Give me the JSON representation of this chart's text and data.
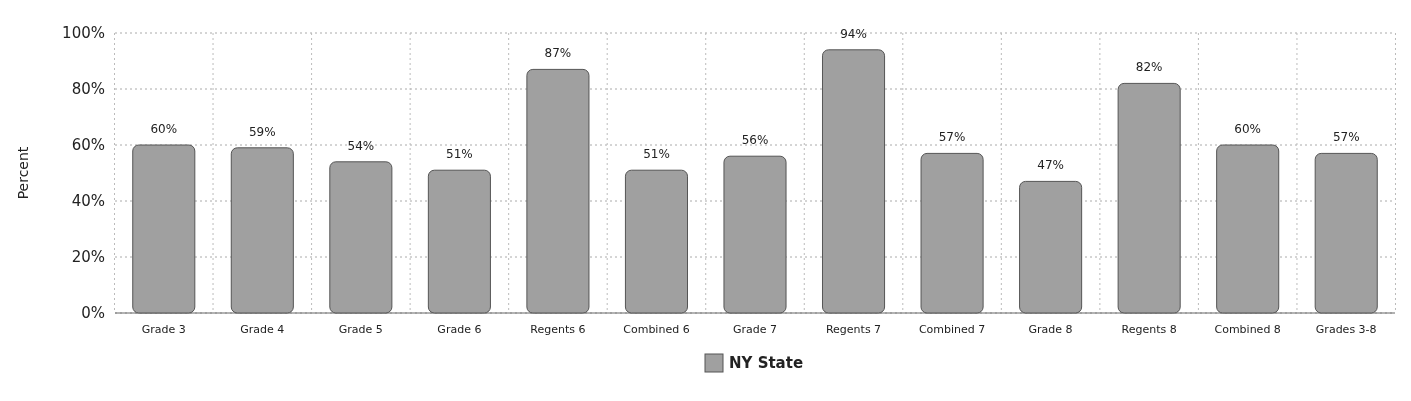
{
  "chart_data": {
    "type": "bar",
    "ylabel": "Percent",
    "categories": [
      "Grade 3",
      "Grade 4",
      "Grade 5",
      "Grade 6",
      "Regents 6",
      "Combined 6",
      "Grade 7",
      "Regents 7",
      "Combined 7",
      "Grade 8",
      "Regents 8",
      "Combined 8",
      "Grades 3-8"
    ],
    "series": [
      {
        "name": "NY State",
        "color": "#a0a0a0",
        "values": [
          60,
          59,
          54,
          51,
          87,
          51,
          56,
          94,
          57,
          47,
          82,
          60,
          57
        ],
        "value_labels": [
          "60%",
          "59%",
          "54%",
          "51%",
          "87%",
          "51%",
          "56%",
          "94%",
          "57%",
          "47%",
          "82%",
          "60%",
          "57%"
        ]
      }
    ],
    "ylim": [
      0,
      100
    ],
    "yticks": [
      {
        "value": 0,
        "label": "0%"
      },
      {
        "value": 20,
        "label": "20%"
      },
      {
        "value": 40,
        "label": "40%"
      },
      {
        "value": 60,
        "label": "60%"
      },
      {
        "value": 80,
        "label": "80%"
      },
      {
        "value": 100,
        "label": "100%"
      }
    ],
    "grid": true,
    "legend": "bottom"
  }
}
